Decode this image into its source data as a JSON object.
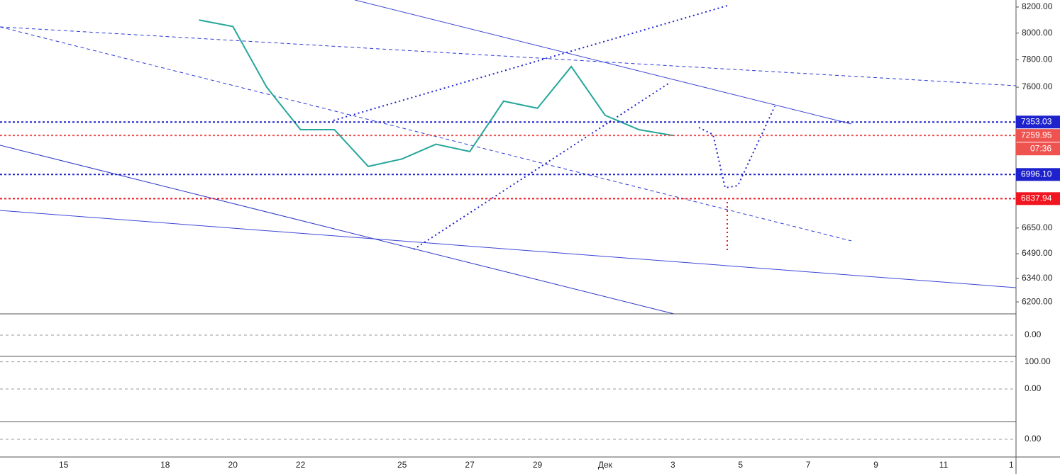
{
  "chart_data": {
    "type": "line",
    "categories": [
      null,
      "15",
      null,
      null,
      "18",
      null,
      "20",
      null,
      "22",
      null,
      null,
      "25",
      null,
      "27",
      null,
      "29",
      null,
      "Дек",
      null,
      "3",
      null,
      "5",
      null,
      "7",
      null,
      "9",
      null,
      "11",
      null,
      "1"
    ],
    "series": [
      {
        "color": "#26a69a",
        "values": [
          null,
          null,
          null,
          null,
          null,
          8100,
          8050,
          7600,
          7300,
          7300,
          7050,
          7100,
          7200,
          7150,
          7500,
          7450,
          7750,
          7400,
          7300,
          7260,
          null,
          null,
          null,
          null,
          null,
          null,
          null,
          null,
          null,
          null
        ]
      }
    ],
    "log_scale": true,
    "ylim": [
      6130,
      8255
    ],
    "yticks": [
      {
        "value": 8200,
        "label": "8200.00"
      },
      {
        "value": 8000,
        "label": "8000.00"
      },
      {
        "value": 7800,
        "label": "7800.00"
      },
      {
        "value": 7600,
        "label": "7600.00"
      },
      {
        "value": 6650,
        "label": "6650.00"
      },
      {
        "value": 6490,
        "label": "6490.00"
      },
      {
        "value": 6340,
        "label": "6340.00"
      },
      {
        "value": 6200,
        "label": "6200.00"
      }
    ],
    "price_lines": [
      {
        "value": 7353.03,
        "label": "7353.03",
        "color": "#1e22cc"
      },
      {
        "value": 7259.95,
        "label": "7259.95",
        "color": "#ef5350"
      },
      {
        "value": 6996.1,
        "label": "6996.10",
        "color": "#1e22cc"
      },
      {
        "value": 6837.94,
        "label": "6837.94",
        "color": "#f0151f"
      }
    ],
    "countdown": "07:36",
    "panes": [
      {
        "ylim": [
          -300,
          300
        ],
        "yticks": [
          {
            "value": 0,
            "label": "0.00"
          }
        ]
      },
      {
        "ylim": [
          -120,
          120
        ],
        "yticks": [
          {
            "value": 100,
            "label": "100.00"
          },
          {
            "value": 0,
            "label": "0.00"
          }
        ]
      },
      {
        "ylim": [
          -1,
          1
        ],
        "yticks": [
          {
            "value": 0,
            "label": "0.00"
          }
        ]
      }
    ]
  }
}
